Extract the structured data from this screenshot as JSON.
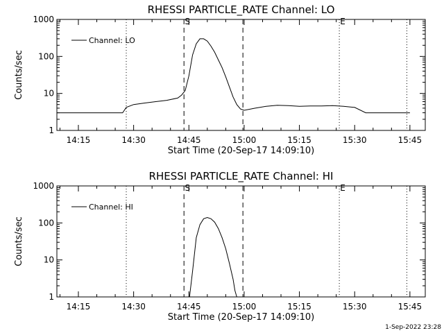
{
  "footer": {
    "timestamp": "1-Sep-2022 23:28"
  },
  "chart_data": [
    {
      "type": "line",
      "title": "RHESSI PARTICLE_RATE Channel: LO",
      "xlabel": "Start Time (20-Sep-17 14:09:10)",
      "ylabel": "Counts/sec",
      "y_scale": "log",
      "ylim": [
        1,
        1000
      ],
      "y_ticks": [
        "1",
        "10",
        "100",
        "1000"
      ],
      "xlim": [
        "14:09:10",
        "15:49:10"
      ],
      "x_ticks": [
        "14:15",
        "14:30",
        "14:45",
        "15:00",
        "15:15",
        "15:30",
        "15:45"
      ],
      "legend": {
        "placement": "top-left",
        "entry": "Channel: LO"
      },
      "markers": [
        {
          "label": "",
          "time": "14:28:00",
          "style": "dotted"
        },
        {
          "label": "S",
          "time": "14:43:40",
          "style": "dashed"
        },
        {
          "label": "",
          "time": "14:59:40",
          "style": "dashed"
        },
        {
          "label": "E",
          "time": "15:25:50",
          "style": "dotted"
        },
        {
          "label": "",
          "time": "15:44:10",
          "style": "dotted"
        }
      ],
      "series": [
        {
          "name": "Channel: LO",
          "x": [
            "14:09:10",
            "14:12:00",
            "14:15:00",
            "14:18:00",
            "14:21:00",
            "14:24:00",
            "14:27:00",
            "14:28:00",
            "14:30:00",
            "14:33:00",
            "14:36:00",
            "14:39:00",
            "14:42:00",
            "14:43:00",
            "14:44:00",
            "14:45:00",
            "14:46:00",
            "14:47:00",
            "14:48:00",
            "14:49:00",
            "14:50:00",
            "14:51:00",
            "14:52:00",
            "14:53:00",
            "14:54:00",
            "14:55:00",
            "14:56:00",
            "14:57:00",
            "14:58:00",
            "14:59:00",
            "15:00:00",
            "15:03:00",
            "15:06:00",
            "15:09:00",
            "15:12:00",
            "15:15:00",
            "15:18:00",
            "15:21:00",
            "15:24:00",
            "15:27:00",
            "15:30:00",
            "15:33:00",
            "15:36:00",
            "15:39:00",
            "15:42:00",
            "15:45:00"
          ],
          "y": [
            3,
            3,
            3,
            3,
            3,
            3,
            3,
            4.2,
            5,
            5.5,
            6,
            6.5,
            7.5,
            9,
            12,
            30,
            110,
            220,
            300,
            300,
            260,
            190,
            130,
            80,
            50,
            28,
            15,
            8,
            5,
            3.8,
            3.5,
            4,
            4.5,
            4.8,
            4.7,
            4.5,
            4.6,
            4.6,
            4.7,
            4.5,
            4.2,
            3,
            3,
            3,
            3,
            3
          ]
        }
      ]
    },
    {
      "type": "line",
      "title": "RHESSI PARTICLE_RATE Channel: HI",
      "xlabel": "Start Time (20-Sep-17 14:09:10)",
      "ylabel": "Counts/sec",
      "y_scale": "log",
      "ylim": [
        1,
        1000
      ],
      "y_ticks": [
        "1",
        "10",
        "100",
        "1000"
      ],
      "xlim": [
        "14:09:10",
        "15:49:10"
      ],
      "x_ticks": [
        "14:15",
        "14:30",
        "14:45",
        "15:00",
        "15:15",
        "15:30",
        "15:45"
      ],
      "legend": {
        "placement": "top-left",
        "entry": "Channel: HI"
      },
      "markers": [
        {
          "label": "",
          "time": "14:28:00",
          "style": "dotted"
        },
        {
          "label": "S",
          "time": "14:43:40",
          "style": "dashed"
        },
        {
          "label": "",
          "time": "14:59:40",
          "style": "dashed"
        },
        {
          "label": "E",
          "time": "15:25:50",
          "style": "dotted"
        },
        {
          "label": "",
          "time": "15:44:10",
          "style": "dotted"
        }
      ],
      "series": [
        {
          "name": "Channel: HI",
          "x": [
            "14:45:10",
            "14:46:00",
            "14:47:00",
            "14:48:00",
            "14:49:00",
            "14:50:00",
            "14:51:00",
            "14:52:00",
            "14:53:00",
            "14:54:00",
            "14:55:00",
            "14:56:00",
            "14:57:00",
            "14:57:30",
            "14:58:00"
          ],
          "y": [
            1,
            5,
            40,
            90,
            130,
            140,
            130,
            105,
            70,
            40,
            20,
            8,
            3,
            1.5,
            1
          ]
        }
      ]
    }
  ]
}
